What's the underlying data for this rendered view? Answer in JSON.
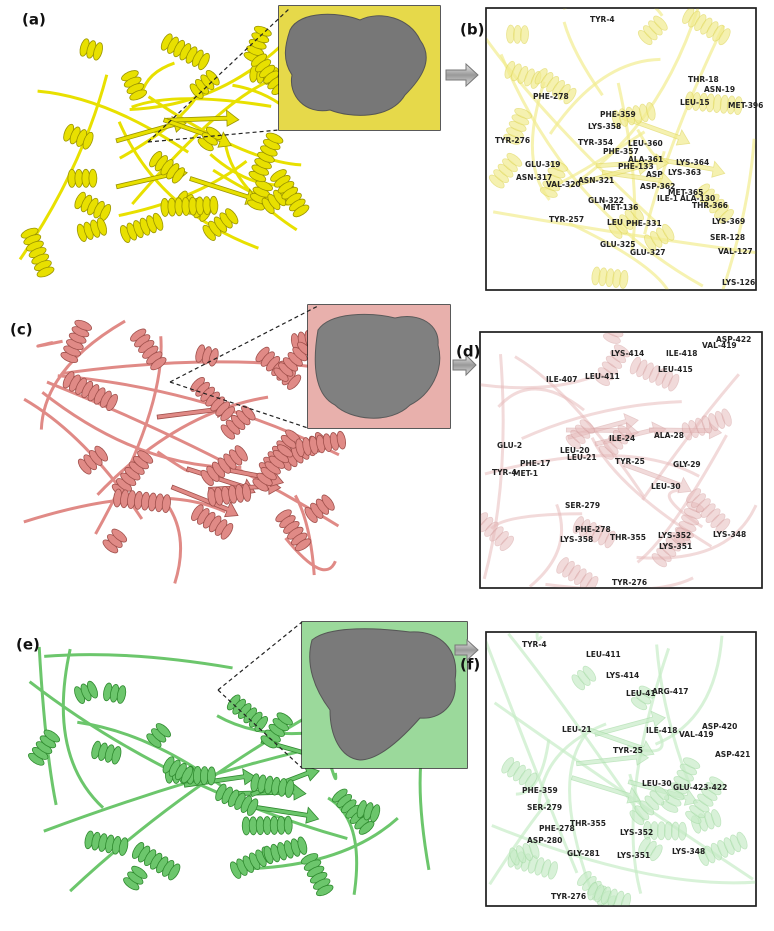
{
  "panel_labels": [
    "(a)",
    "(b)",
    "(c)",
    "(d)",
    "(e)",
    "(f)"
  ],
  "residues": {
    "b": [
      "TYR-4",
      "THR-18",
      "ASN-19",
      "PHE-278",
      "LEU-15",
      "MET-396",
      "PHE-359",
      "LYS-358",
      "TYR-276",
      "TYR-354",
      "LEU-360",
      "PHE-357",
      "ALA-361",
      "PHE-133",
      "LYS-364",
      "GLU-319",
      "ASN-317",
      "ASP",
      "LYS-363",
      "VAL-320",
      "ASN-321",
      "ASP-362",
      "MET-365",
      "ILE-1",
      "ALA-130",
      "GLN-322",
      "THR-366",
      "MET-136",
      "TYR-257",
      "LEU",
      "PHE-331",
      "LYS-369",
      "SER-128",
      "GLU-325",
      "GLU-327",
      "VAL-127",
      "LYS-126"
    ],
    "d": [
      "ASP-422",
      "VAL-419",
      "LYS-414",
      "ILE-418",
      "LEU-415",
      "ILE-407",
      "LEU-411",
      "ILE-24",
      "ALA-28",
      "GLU-2",
      "LEU-20",
      "LEU-21",
      "TYR-25",
      "GLY-29",
      "PHE-17",
      "TYR-4",
      "MET-1",
      "LEU-30",
      "SER-279",
      "PHE-278",
      "THR-355",
      "LYS-352",
      "LYS-348",
      "LYS-358",
      "LYS-351",
      "TYR-276"
    ],
    "f": [
      "TYR-4",
      "LEU-411",
      "LYS-414",
      "LEU-41",
      "ARG-417",
      "LEU-21",
      "ILE-418",
      "VAL-419",
      "ASP-420",
      "ASP-421",
      "TYR-25",
      "LEU-30",
      "GLU-423-422",
      "PHE-359",
      "SER-279",
      "THR-355",
      "PHE-278",
      "LYS-352",
      "LYS-348",
      "ASP-280",
      "GLY-281",
      "LYS-351",
      "TYR-276"
    ]
  }
}
